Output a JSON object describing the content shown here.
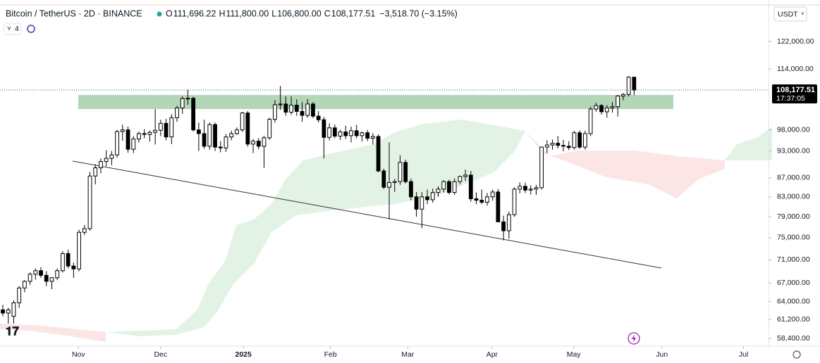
{
  "header": {
    "symbol": "Bitcoin / TetherUS · 2D · BINANCE",
    "ohlc": [
      {
        "label": "O",
        "value": "111,696.22"
      },
      {
        "label": "H",
        "value": "111,800.00"
      },
      {
        "label": "L",
        "value": "106,800.00"
      },
      {
        "label": "C",
        "value": "108,177.51"
      }
    ],
    "change": "−3,518.70 (−3.15%)",
    "indicators": "4"
  },
  "currency": "USDT",
  "chart_data": {
    "type": "candlestick",
    "log_scale": true,
    "up_color": "#ffffff",
    "down_color": "#000000",
    "open": [
      62700,
      62200,
      61700,
      63800,
      66200,
      67300,
      68500,
      69100,
      68300,
      67300,
      67900,
      69100,
      72100,
      69900,
      69400,
      76000,
      76700,
      87400,
      89200,
      90600,
      91300,
      92100,
      97600,
      98000,
      93400,
      95800,
      97100,
      96900,
      97400,
      97900,
      99600,
      96300,
      101000,
      103500,
      105900,
      106000,
      98000,
      97100,
      94100,
      99300,
      93900,
      93700,
      96300,
      97100,
      98000,
      102200,
      94600,
      95300,
      94100,
      96100,
      100600,
      104300,
      104500,
      102400,
      104200,
      102600,
      101600,
      104500,
      101400,
      100500,
      96200,
      98500,
      96500,
      97500,
      96600,
      97800,
      96600,
      97300,
      96000,
      96400,
      88500,
      85000,
      86000,
      86200,
      90400,
      86200,
      83000,
      80500,
      83000,
      82400,
      83900,
      84600,
      86200,
      83900,
      86200,
      87300,
      87600,
      82600,
      82300,
      81900,
      83000,
      84000,
      78000,
      76300,
      79400,
      84600,
      85200,
      84400,
      84600,
      84900,
      93900,
      94400,
      94800,
      94300,
      94100,
      93800,
      97300,
      93900,
      97100,
      103200,
      104100,
      102500,
      103500,
      103800,
      106600,
      107000,
      111696.22
    ],
    "high": [
      63500,
      63000,
      64200,
      66500,
      67500,
      68800,
      69500,
      69700,
      69000,
      68000,
      69500,
      72500,
      72800,
      70500,
      76500,
      77400,
      88300,
      90000,
      91300,
      93200,
      93000,
      98000,
      99300,
      98800,
      96500,
      97600,
      98200,
      97800,
      103200,
      100500,
      100700,
      101900,
      104000,
      106500,
      108300,
      106400,
      99800,
      100500,
      99800,
      99800,
      95300,
      97000,
      97800,
      98600,
      102500,
      102700,
      95800,
      96000,
      96600,
      101000,
      105500,
      109300,
      106500,
      106500,
      105700,
      105000,
      105800,
      105000,
      102700,
      101200,
      99600,
      99300,
      98000,
      99000,
      98800,
      99200,
      97600,
      98000,
      97200,
      96900,
      89000,
      95000,
      86800,
      92000,
      91000,
      86800,
      84000,
      84000,
      84500,
      84700,
      85200,
      86500,
      86600,
      86900,
      87500,
      88800,
      88500,
      83900,
      84500,
      83800,
      84500,
      84600,
      79200,
      80000,
      85000,
      86000,
      86000,
      85400,
      85500,
      94000,
      95500,
      95700,
      96500,
      95600,
      95300,
      97800,
      97900,
      97800,
      103800,
      104800,
      104500,
      104200,
      105000,
      106900,
      107400,
      112000,
      111800
    ],
    "low": [
      61700,
      60600,
      60600,
      63000,
      65500,
      66700,
      67600,
      67900,
      66500,
      66000,
      67500,
      68800,
      69500,
      67900,
      69000,
      75500,
      76300,
      85600,
      88000,
      89500,
      89800,
      91500,
      95400,
      92600,
      92500,
      95000,
      96000,
      95200,
      94500,
      96500,
      95500,
      94600,
      100000,
      102000,
      104300,
      97600,
      93000,
      93500,
      93300,
      93000,
      92700,
      92800,
      95500,
      96800,
      97500,
      94000,
      92500,
      93400,
      89200,
      95600,
      99800,
      103000,
      101500,
      101700,
      101500,
      100000,
      101000,
      100900,
      99800,
      91300,
      95500,
      96000,
      95600,
      95800,
      95000,
      96000,
      95200,
      95300,
      94500,
      88200,
      84600,
      78500,
      84000,
      85500,
      85800,
      82300,
      79000,
      76800,
      81500,
      81800,
      83000,
      83900,
      83500,
      83400,
      85600,
      86300,
      82000,
      81500,
      81500,
      81200,
      82200,
      77900,
      74500,
      74800,
      79000,
      83700,
      83800,
      83500,
      83400,
      84500,
      92500,
      93300,
      93600,
      92900,
      93200,
      93300,
      93500,
      93300,
      96500,
      102500,
      101800,
      101000,
      102300,
      101300,
      105500,
      106500,
      106800
    ],
    "close": [
      62200,
      62700,
      63800,
      66200,
      67300,
      68500,
      69100,
      68300,
      67300,
      67900,
      69100,
      72100,
      69900,
      69400,
      76000,
      76700,
      87400,
      89200,
      90600,
      91300,
      92100,
      97600,
      98000,
      93400,
      95800,
      97100,
      96900,
      97400,
      97900,
      99600,
      96300,
      101000,
      103500,
      105900,
      106000,
      98000,
      97100,
      94100,
      99300,
      93900,
      93700,
      96300,
      97100,
      98000,
      102200,
      94600,
      95300,
      94100,
      96100,
      100600,
      104300,
      104500,
      102400,
      104200,
      102600,
      101600,
      104500,
      101400,
      100500,
      96200,
      98500,
      96500,
      97500,
      96600,
      97800,
      96600,
      97300,
      96000,
      96400,
      88500,
      85000,
      86000,
      86200,
      90400,
      86200,
      83000,
      80500,
      83000,
      82400,
      83900,
      84600,
      86200,
      83900,
      86200,
      87300,
      87600,
      82600,
      82300,
      81900,
      83000,
      84000,
      78000,
      76300,
      79400,
      84600,
      85200,
      84400,
      84600,
      84900,
      93900,
      94400,
      94800,
      94300,
      94100,
      93800,
      97300,
      93900,
      97100,
      103200,
      104100,
      102500,
      103500,
      103800,
      106600,
      107000,
      111696.22,
      108177.51
    ],
    "ylim": [
      57300,
      133400
    ],
    "yticks": [
      {
        "value": 122000,
        "label": "122,000.00"
      },
      {
        "value": 114000,
        "label": "114,000.00"
      },
      {
        "value": 98000,
        "label": "98,000.00"
      },
      {
        "value": 93000,
        "label": "93,000.00"
      },
      {
        "value": 87000,
        "label": "87,000.00"
      },
      {
        "value": 83000,
        "label": "83,000.00"
      },
      {
        "value": 79000,
        "label": "79,000.00"
      },
      {
        "value": 75000,
        "label": "75,000.00"
      },
      {
        "value": 71000,
        "label": "71,000.00"
      },
      {
        "value": 67000,
        "label": "67,000.00"
      },
      {
        "value": 64000,
        "label": "64,000.00"
      },
      {
        "value": 61200,
        "label": "61,200.00"
      },
      {
        "value": 58400,
        "label": "58,400.00"
      }
    ],
    "xlim": [
      -0.52,
      140.7
    ],
    "xticks": [
      {
        "value": 13.9,
        "label": "Nov"
      },
      {
        "value": 29.0,
        "label": "Dec"
      },
      {
        "value": 44.2,
        "label": "2025"
      },
      {
        "value": 60.2,
        "label": "Feb"
      },
      {
        "value": 74.4,
        "label": "Mar"
      },
      {
        "value": 89.9,
        "label": "Apr"
      },
      {
        "value": 104.9,
        "label": "May"
      },
      {
        "value": 121.1,
        "label": "Jun"
      },
      {
        "value": 136.1,
        "label": "Jul"
      }
    ],
    "last_price": {
      "value": 108177.51,
      "label": "108,177.51",
      "countdown": "17:37:05"
    }
  }
}
